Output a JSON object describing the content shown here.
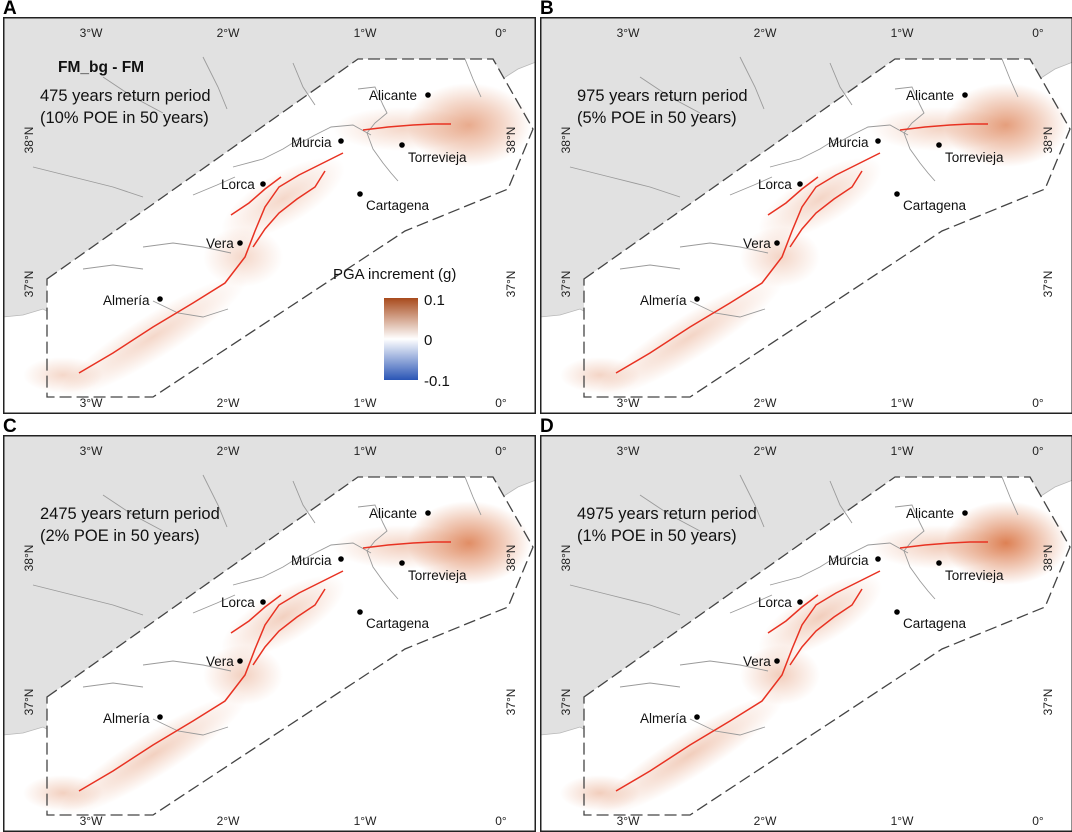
{
  "figure": {
    "title": "FM_bg - FM",
    "legend": {
      "title": "PGA increment (g)",
      "max_label": "0.1",
      "mid_label": "0",
      "min_label": "-0.1",
      "max_color": "#a84a1c",
      "mid_color": "#ffffff",
      "min_color": "#2a55b5"
    },
    "colors": {
      "land": "#e1e1e1",
      "study_area": "#ffffff",
      "fault": "#e83222",
      "boundary": "#9a9a9a",
      "frame": "#222222",
      "increment": "#d9713f"
    }
  },
  "axes": {
    "lon_labels": [
      "3°W",
      "2°W",
      "1°W",
      "0°"
    ],
    "lat_labels": [
      "38°N",
      "37°N"
    ]
  },
  "cities": [
    "Alicante",
    "Murcia",
    "Torrevieja",
    "Lorca",
    "Cartagena",
    "Vera",
    "Almería"
  ],
  "panels": [
    {
      "letter": "A",
      "return_period": "475 years return period",
      "poe": "(10% POE in 50 years)",
      "max_increment_g": 0.04
    },
    {
      "letter": "B",
      "return_period": "975 years return period",
      "poe": "(5% POE in 50 years)",
      "max_increment_g": 0.055
    },
    {
      "letter": "C",
      "return_period": "2475 years return period",
      "poe": "(2% POE in 50 years)",
      "max_increment_g": 0.075
    },
    {
      "letter": "D",
      "return_period": "4975 years return period",
      "poe": "(1% POE in 50 years)",
      "max_increment_g": 0.09
    }
  ]
}
